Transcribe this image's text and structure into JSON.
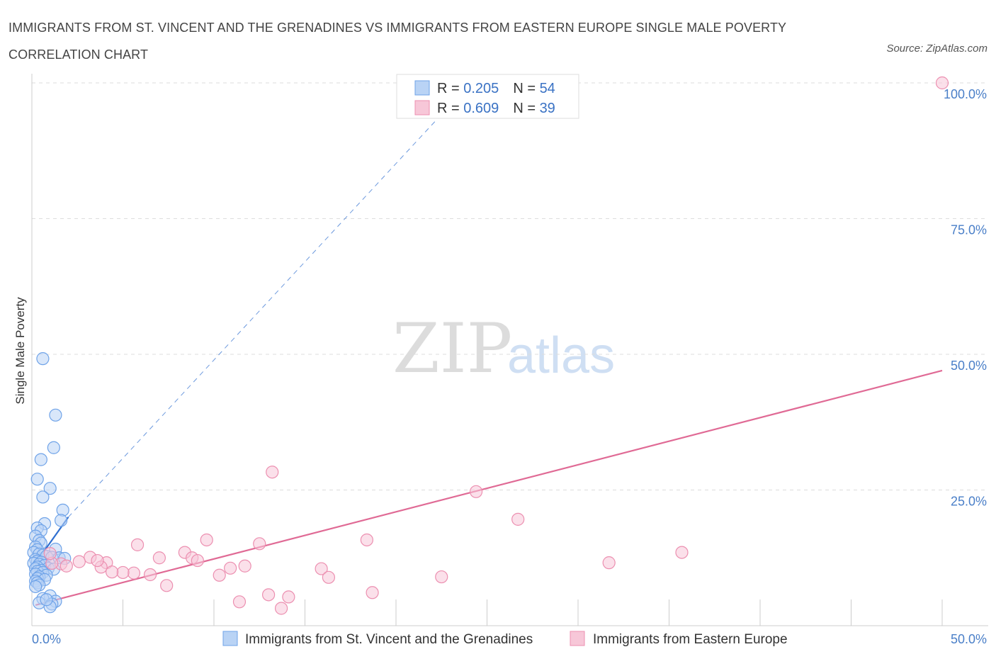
{
  "header": {
    "title": "IMMIGRANTS FROM ST. VINCENT AND THE GRENADINES VS IMMIGRANTS FROM EASTERN EUROPE SINGLE MALE POVERTY CORRELATION CHART",
    "source": "Source: ZipAtlas.com"
  },
  "watermark": {
    "zip": "ZIP",
    "atlas": "atlas"
  },
  "chart_data": {
    "type": "scatter",
    "title": "IMMIGRANTS FROM ST. VINCENT AND THE GRENADINES VS IMMIGRANTS FROM EASTERN EUROPE SINGLE MALE POVERTY CORRELATION CHART",
    "xlabel": "",
    "ylabel": "Single Male Poverty",
    "xlim": [
      0,
      50
    ],
    "ylim": [
      0,
      100
    ],
    "x_tick_labels": [
      "0.0%",
      "50.0%"
    ],
    "y_tick_labels": [
      "100.0%",
      "75.0%",
      "50.0%",
      "25.0%"
    ],
    "y_ticks": [
      100,
      75,
      50,
      25
    ],
    "grid": true,
    "legend_position": "top-center",
    "stats": [
      {
        "r_label": "R = ",
        "r": "0.205",
        "n_label": "N = ",
        "n": "54"
      },
      {
        "r_label": "R = ",
        "r": "0.609",
        "n_label": "N = ",
        "n": "39"
      }
    ],
    "series": [
      {
        "name": "Immigrants from St. Vincent and the Grenadines",
        "color": "#6fa3e8",
        "fill": "#b9d3f5",
        "trend_color": "#2f6fd0",
        "trend_solid": [
          [
            0.2,
            11.5
          ],
          [
            2.0,
            20.0
          ]
        ],
        "trend_dashed": [
          [
            2.0,
            20.0
          ],
          [
            23.0,
            96.0
          ]
        ],
        "points": [
          [
            0.6,
            49.2
          ],
          [
            1.3,
            38.8
          ],
          [
            1.2,
            32.8
          ],
          [
            0.5,
            30.6
          ],
          [
            0.3,
            27.0
          ],
          [
            1.0,
            25.3
          ],
          [
            0.6,
            23.7
          ],
          [
            1.7,
            21.3
          ],
          [
            1.6,
            19.4
          ],
          [
            0.7,
            18.8
          ],
          [
            0.3,
            18.0
          ],
          [
            0.5,
            17.5
          ],
          [
            0.2,
            16.5
          ],
          [
            0.4,
            15.7
          ],
          [
            0.5,
            15.2
          ],
          [
            0.2,
            14.5
          ],
          [
            0.3,
            14.0
          ],
          [
            1.3,
            14.1
          ],
          [
            0.1,
            13.5
          ],
          [
            0.4,
            13.2
          ],
          [
            0.6,
            13.0
          ],
          [
            0.8,
            12.8
          ],
          [
            1.1,
            12.6
          ],
          [
            1.5,
            12.5
          ],
          [
            1.8,
            12.4
          ],
          [
            0.2,
            12.2
          ],
          [
            0.3,
            11.9
          ],
          [
            0.5,
            11.7
          ],
          [
            0.1,
            11.5
          ],
          [
            0.4,
            11.3
          ],
          [
            0.7,
            11.1
          ],
          [
            0.3,
            10.8
          ],
          [
            0.2,
            10.5
          ],
          [
            0.9,
            10.6
          ],
          [
            1.2,
            10.4
          ],
          [
            0.5,
            10.2
          ],
          [
            0.3,
            10.0
          ],
          [
            0.6,
            9.8
          ],
          [
            0.2,
            9.5
          ],
          [
            0.8,
            9.3
          ],
          [
            0.4,
            9.0
          ],
          [
            0.3,
            8.7
          ],
          [
            0.7,
            8.5
          ],
          [
            0.2,
            8.2
          ],
          [
            0.3,
            7.9
          ],
          [
            0.4,
            7.5
          ],
          [
            0.2,
            7.2
          ],
          [
            1.0,
            5.5
          ],
          [
            0.6,
            5.0
          ],
          [
            1.3,
            4.5
          ],
          [
            0.4,
            4.2
          ],
          [
            1.1,
            4.0
          ],
          [
            1.0,
            3.5
          ],
          [
            0.8,
            4.8
          ]
        ]
      },
      {
        "name": "Immigrants from Eastern Europe",
        "color": "#ec8fb0",
        "fill": "#f7c7d8",
        "trend_color": "#e06a95",
        "trend_solid": [
          [
            0.2,
            3.8
          ],
          [
            50.0,
            47.0
          ]
        ],
        "points": [
          [
            50.0,
            100.0
          ],
          [
            13.2,
            28.3
          ],
          [
            24.4,
            24.7
          ],
          [
            26.7,
            19.6
          ],
          [
            9.6,
            15.8
          ],
          [
            18.4,
            15.8
          ],
          [
            12.5,
            15.1
          ],
          [
            5.8,
            14.9
          ],
          [
            35.7,
            13.5
          ],
          [
            8.4,
            13.5
          ],
          [
            7.0,
            12.5
          ],
          [
            3.2,
            12.6
          ],
          [
            8.8,
            12.5
          ],
          [
            9.1,
            12.0
          ],
          [
            4.1,
            11.6
          ],
          [
            1.6,
            11.4
          ],
          [
            31.7,
            11.6
          ],
          [
            1.9,
            11.0
          ],
          [
            11.7,
            11.0
          ],
          [
            10.9,
            10.6
          ],
          [
            3.8,
            10.8
          ],
          [
            3.6,
            12.0
          ],
          [
            1.1,
            11.5
          ],
          [
            2.6,
            11.8
          ],
          [
            15.9,
            10.5
          ],
          [
            5.6,
            9.7
          ],
          [
            5.0,
            9.8
          ],
          [
            4.4,
            9.9
          ],
          [
            6.5,
            9.4
          ],
          [
            10.3,
            9.3
          ],
          [
            16.3,
            8.9
          ],
          [
            22.5,
            9.0
          ],
          [
            7.4,
            7.4
          ],
          [
            13.0,
            5.7
          ],
          [
            14.1,
            5.3
          ],
          [
            18.7,
            6.1
          ],
          [
            11.4,
            4.4
          ],
          [
            13.7,
            3.2
          ],
          [
            1.0,
            13.3
          ]
        ]
      }
    ]
  }
}
